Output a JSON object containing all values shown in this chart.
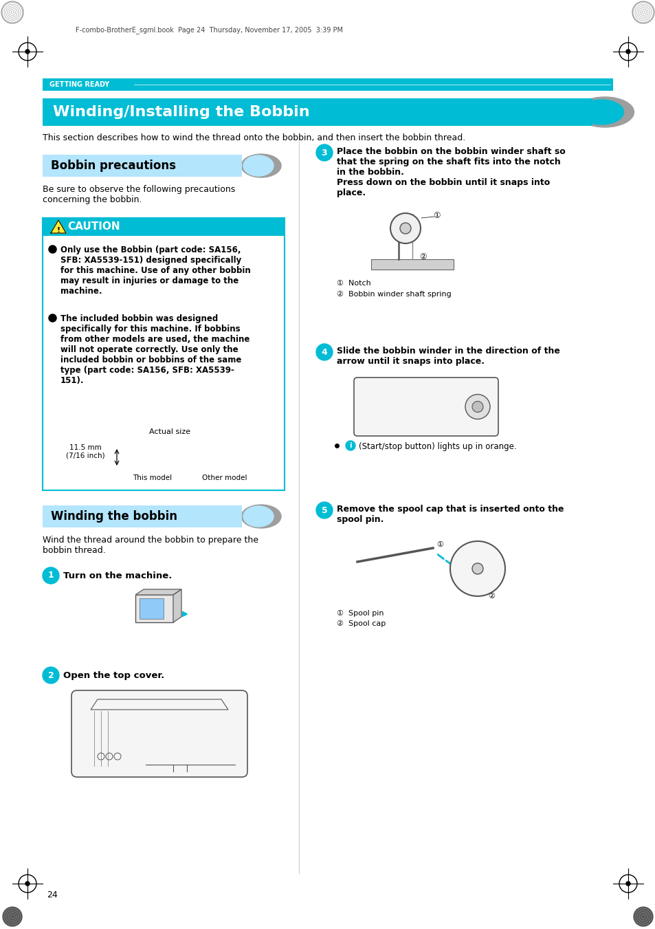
{
  "page_bg": "#ffffff",
  "header_bar_color": "#00bcd4",
  "header_text": "GETTING READY",
  "header_text_color": "#ffffff",
  "title_bar_color": "#00bcd4",
  "title_text": "Winding/Installing the Bobbin",
  "title_text_color": "#ffffff",
  "intro_text": "This section describes how to wind the thread onto the bobbin, and then insert the bobbin thread.",
  "section1_bar_color": "#b3e5fc",
  "section1_title": "Bobbin precautions",
  "section1_title_color": "#000000",
  "section1_intro": "Be sure to observe the following precautions\nconcerning the bobbin.",
  "caution_bar_color": "#00bcd4",
  "caution_title": "CAUTION",
  "caution_bullet1": "Only use the Bobbin (part code: SA156,\nSFB: XA5539-151) designed specifically\nfor this machine. Use of any other bobbin\nmay result in injuries or damage to the\nmachine.",
  "caution_bullet2": "The included bobbin was designed\nspecifically for this machine. If bobbins\nfrom other models are used, the machine\nwill not operate correctly. Use only the\nincluded bobbin or bobbins of the same\ntype (part code: SA156, SFB: XA5539-\n151).",
  "actual_size_text": "Actual size",
  "this_model_text": "This model",
  "other_model_text": "Other model",
  "size_text": "11.5 mm\n(7/16 inch)",
  "section2_bar_color": "#b3e5fc",
  "section2_title": "Winding the bobbin",
  "section2_title_color": "#000000",
  "section2_intro": "Wind the thread around the bobbin to prepare the\nbobbin thread.",
  "step1_num": "1",
  "step1_text": "Turn on the machine.",
  "step2_num": "2",
  "step2_text": "Open the top cover.",
  "step3_num": "3",
  "step3_text_line1": "Place the bobbin on the bobbin winder shaft so",
  "step3_text_line2": "that the spring on the shaft fits into the notch",
  "step3_text_line3": "in the bobbin.",
  "step3_text_line4": "Press down on the bobbin until it snaps into",
  "step3_text_line5": "place.",
  "step3_note1": "①  Notch",
  "step3_note2": "②  Bobbin winder shaft spring",
  "step4_num": "4",
  "step4_text_line1": "Slide the bobbin winder in the direction of the",
  "step4_text_line2": "arrow until it snaps into place.",
  "step4_bullet": "  ①  (Start/stop button) lights up in orange.",
  "step5_num": "5",
  "step5_text_line1": "Remove the spool cap that is inserted onto the",
  "step5_text_line2": "spool pin.",
  "step5_note1": "①  Spool pin",
  "step5_note2": "②  Spool cap",
  "step_circle_color": "#00bcd4",
  "step_text_color": "#ffffff",
  "page_number": "24",
  "file_info": "F-combo-BrotherE_sgml.book  Page 24  Thursday, November 17, 2005  3:39 PM",
  "caution_border_color": "#00bcd4",
  "caution_bg": "#ffffff"
}
